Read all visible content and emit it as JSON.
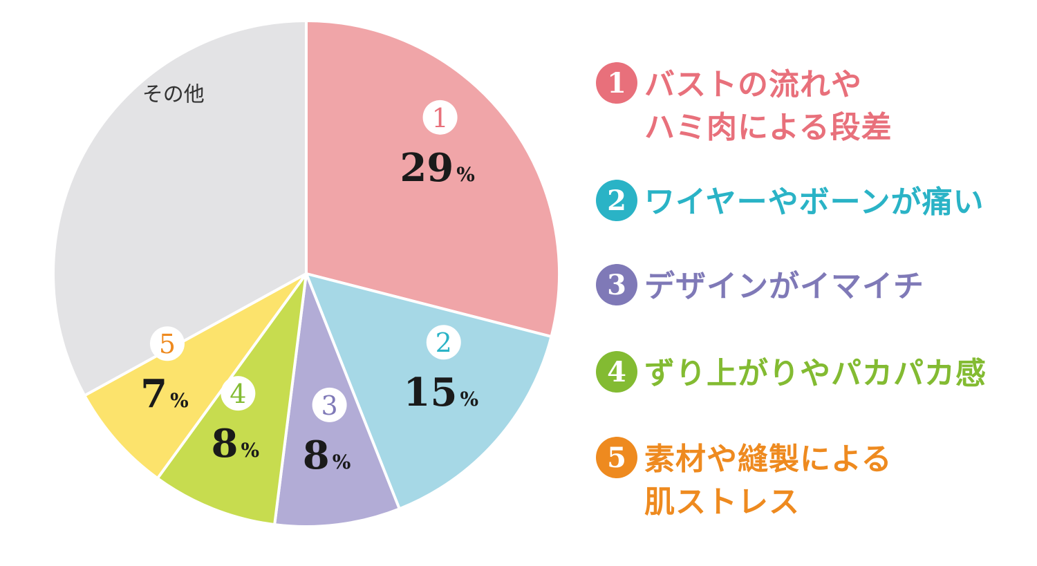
{
  "chart_data": {
    "type": "pie",
    "start_angle_deg": 0,
    "direction": "clockwise",
    "slices": [
      {
        "rank": "1",
        "value": 29,
        "unit": "%",
        "color": "#f0a5a8",
        "accent": "#e8707b",
        "label": "バストの流れや\nハミ肉による段差"
      },
      {
        "rank": "2",
        "value": 15,
        "unit": "%",
        "color": "#a6d8e6",
        "accent": "#2ab3c6",
        "label": "ワイヤーやボーンが痛い"
      },
      {
        "rank": "3",
        "value": 8,
        "unit": "%",
        "color": "#b2acd6",
        "accent": "#7f79b7",
        "label": "デザインがイマイチ"
      },
      {
        "rank": "4",
        "value": 8,
        "unit": "%",
        "color": "#c7dc4f",
        "accent": "#83bb32",
        "label": "ずり上がりやパカパカ感"
      },
      {
        "rank": "5",
        "value": 7,
        "unit": "%",
        "color": "#fce36c",
        "accent": "#ee8a1f",
        "label": "素材や縫製による\n肌ストレス"
      },
      {
        "rank": "",
        "value": 33,
        "unit": "",
        "color": "#e3e3e5",
        "accent": "#333333",
        "label": "その他"
      }
    ]
  },
  "legend": [
    {
      "rank": "1",
      "text": "バストの流れや\nハミ肉による段差",
      "color": "#e8707b"
    },
    {
      "rank": "2",
      "text": "ワイヤーやボーンが痛い",
      "color": "#2ab3c6"
    },
    {
      "rank": "3",
      "text": "デザインがイマイチ",
      "color": "#7f79b7"
    },
    {
      "rank": "4",
      "text": "ずり上がりやパカパカ感",
      "color": "#83bb32"
    },
    {
      "rank": "5",
      "text": "素材や縫製による\n肌ストレス",
      "color": "#ee8a1f"
    }
  ],
  "other_label": "その他"
}
